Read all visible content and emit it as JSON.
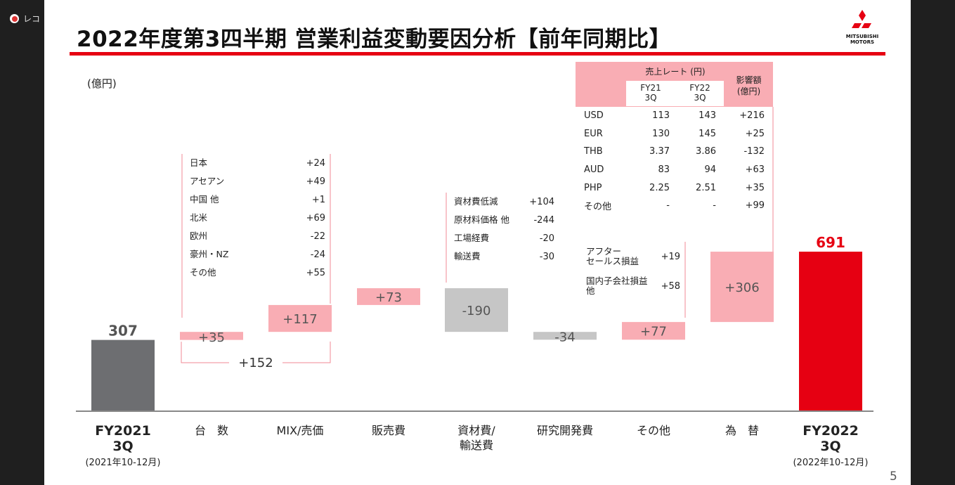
{
  "recorder": {
    "label": "レコ"
  },
  "slide": {
    "title": "2022年度第3四半期 営業利益変動要因分析【前年同期比】",
    "unit": "(億円)",
    "page_number": "5",
    "logo": {
      "line1": "MITSUBISHI",
      "line2": "MOTORS"
    }
  },
  "chart_data": {
    "type": "bar",
    "subtype": "waterfall",
    "unit": "(億円)",
    "categories": [
      "FY2021 3Q",
      "台　数",
      "MIX/売価",
      "販売費",
      "資材費/輸送費",
      "研究開発費",
      "その他",
      "為　替",
      "FY2022 3Q"
    ],
    "start": {
      "label": "FY2021 3Q",
      "value": 307,
      "period": "(2021年10-12月)",
      "color": "#6d6e71"
    },
    "steps": [
      {
        "label": "台　数",
        "value": 35,
        "display": "+35"
      },
      {
        "label": "MIX/売価",
        "value": 117,
        "display": "+117"
      },
      {
        "label": "販売費",
        "value": 73,
        "display": "+73"
      },
      {
        "label": "資材費/輸送費",
        "value": -190,
        "display": "-190"
      },
      {
        "label": "研究開発費",
        "value": -34,
        "display": "-34"
      },
      {
        "label": "その他",
        "value": 77,
        "display": "+77"
      },
      {
        "label": "為　替",
        "value": 306,
        "display": "+306"
      }
    ],
    "end": {
      "label": "FY2022 3Q",
      "value": 691,
      "period": "(2022年10-12月)",
      "color": "#e60012"
    },
    "group_bracket": {
      "label": "+152",
      "spans": [
        "台　数",
        "MIX/売価"
      ]
    },
    "colors": {
      "positive": "#f9adb4",
      "negative": "#c6c6c6",
      "start": "#6d6e71",
      "end": "#e60012"
    }
  },
  "cat_labels": [
    {
      "line1": "FY2021",
      "line2": "3Q",
      "sub": "(2021年10-12月)"
    },
    {
      "line1": "台　数",
      "line2": "",
      "sub": ""
    },
    {
      "line1": "MIX/売価",
      "line2": "",
      "sub": ""
    },
    {
      "line1": "販売費",
      "line2": "",
      "sub": ""
    },
    {
      "line1": "資材費/",
      "line2": "輸送費",
      "sub": ""
    },
    {
      "line1": "研究開発費",
      "line2": "",
      "sub": ""
    },
    {
      "line1": "その他",
      "line2": "",
      "sub": ""
    },
    {
      "line1": "為　替",
      "line2": "",
      "sub": ""
    },
    {
      "line1": "FY2022",
      "line2": "3Q",
      "sub": "(2022年10-12月)"
    }
  ],
  "volume_breakdown": [
    {
      "region": "日本",
      "value": "+24"
    },
    {
      "region": "アセアン",
      "value": "+49"
    },
    {
      "region": "中国 他",
      "value": "+1"
    },
    {
      "region": "北米",
      "value": "+69"
    },
    {
      "region": "欧州",
      "value": "-22"
    },
    {
      "region": "豪州・NZ",
      "value": "-24"
    },
    {
      "region": "その他",
      "value": "+55"
    }
  ],
  "material_breakdown": [
    {
      "item": "資材費低減",
      "value": "+104"
    },
    {
      "item": "原材料価格 他",
      "value": "-244"
    },
    {
      "item": "工場経費",
      "value": "-20"
    },
    {
      "item": "輸送費",
      "value": "-30"
    }
  ],
  "other_breakdown": [
    {
      "item": "アフター\nセールス損益",
      "value": "+19"
    },
    {
      "item": "国内子会社損益\n他",
      "value": "+58"
    }
  ],
  "fx_table": {
    "header_rate": "売上レート (円)",
    "header_fy21": "FY21\n3Q",
    "header_fy22": "FY22\n3Q",
    "header_impact": "影響額\n(億円)",
    "rows": [
      {
        "cur": "USD",
        "fy21": "113",
        "fy22": "143",
        "impact": "+216"
      },
      {
        "cur": "EUR",
        "fy21": "130",
        "fy22": "145",
        "impact": "+25"
      },
      {
        "cur": "THB",
        "fy21": "3.37",
        "fy22": "3.86",
        "impact": "-132"
      },
      {
        "cur": "AUD",
        "fy21": "83",
        "fy22": "94",
        "impact": "+63"
      },
      {
        "cur": "PHP",
        "fy21": "2.25",
        "fy22": "2.51",
        "impact": "+35"
      },
      {
        "cur": "その他",
        "fy21": "-",
        "fy22": "-",
        "impact": "+99"
      }
    ]
  }
}
